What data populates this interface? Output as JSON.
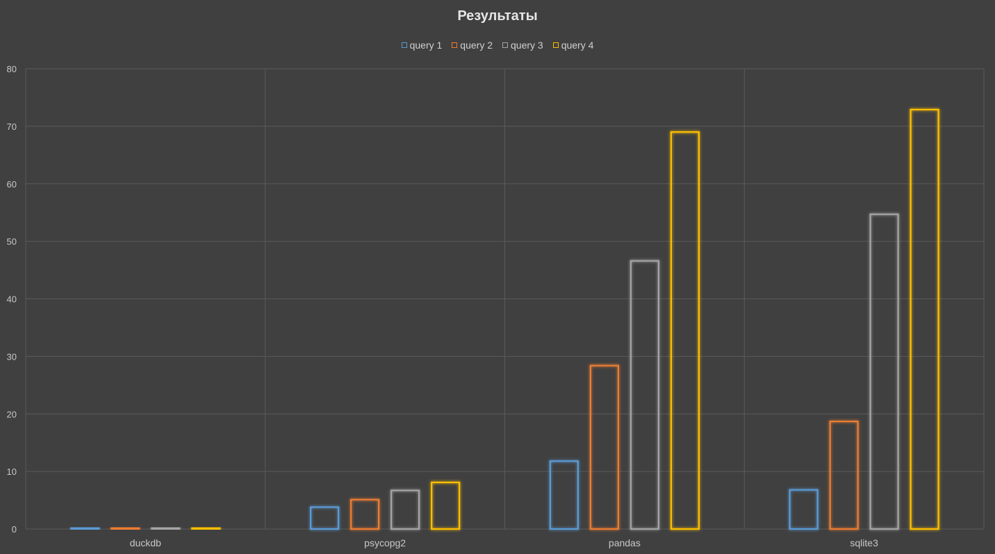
{
  "chart_data": {
    "type": "bar",
    "title": "Результаты",
    "categories": [
      "duckdb",
      "psycopg2",
      "pandas",
      "sqlite3"
    ],
    "series": [
      {
        "name": "query 1",
        "color": "#5b9bd5",
        "values": [
          0.1,
          3.8,
          11.8,
          6.8
        ]
      },
      {
        "name": "query 2",
        "color": "#ed7d31",
        "values": [
          0.1,
          5.1,
          28.4,
          18.7
        ]
      },
      {
        "name": "query 3",
        "color": "#a5a5a5",
        "values": [
          0.1,
          6.7,
          46.6,
          54.7
        ]
      },
      {
        "name": "query 4",
        "color": "#ffc000",
        "values": [
          0.2,
          8.1,
          69.0,
          72.9
        ]
      }
    ],
    "ylim": [
      0,
      80
    ],
    "yticks": [
      0,
      10,
      20,
      30,
      40,
      50,
      60,
      70,
      80
    ],
    "grid": true,
    "legend_position": "top",
    "xlabel": "",
    "ylabel": ""
  }
}
